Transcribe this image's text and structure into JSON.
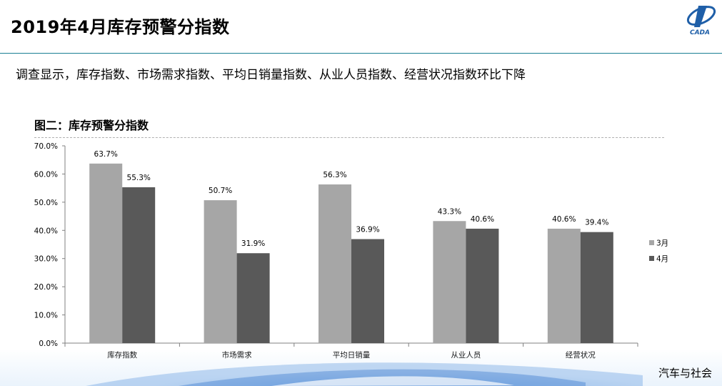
{
  "slide": {
    "title": "2019年4月库存预警分指数",
    "subtitle": "调查显示，库存指数、市场需求指数、平均日销量指数、从业人员指数、经营状况指数环比下降",
    "footer": "汽车与社会",
    "logo_text": "CADA",
    "accent_color": "#1a7f93"
  },
  "chart_data": {
    "type": "bar",
    "title": "图二：库存预警分指数",
    "categories": [
      "库存指数",
      "市场需求",
      "平均日销量",
      "从业人员",
      "经营状况"
    ],
    "series": [
      {
        "name": "3月",
        "color": "#a6a6a6",
        "values": [
          63.7,
          50.7,
          56.3,
          43.3,
          40.6
        ],
        "labels": [
          "63.7%",
          "50.7%",
          "56.3%",
          "43.3%",
          "40.6%"
        ]
      },
      {
        "name": "4月",
        "color": "#595959",
        "values": [
          55.3,
          31.9,
          36.9,
          40.6,
          39.4
        ],
        "labels": [
          "55.3%",
          "31.9%",
          "36.9%",
          "40.6%",
          "39.4%"
        ]
      }
    ],
    "ylim": [
      0,
      70
    ],
    "yticks": [
      "0.0%",
      "10.0%",
      "20.0%",
      "30.0%",
      "40.0%",
      "50.0%",
      "60.0%",
      "70.0%"
    ],
    "xlabel": "",
    "ylabel": "",
    "grid": false,
    "legend_position": "right"
  }
}
